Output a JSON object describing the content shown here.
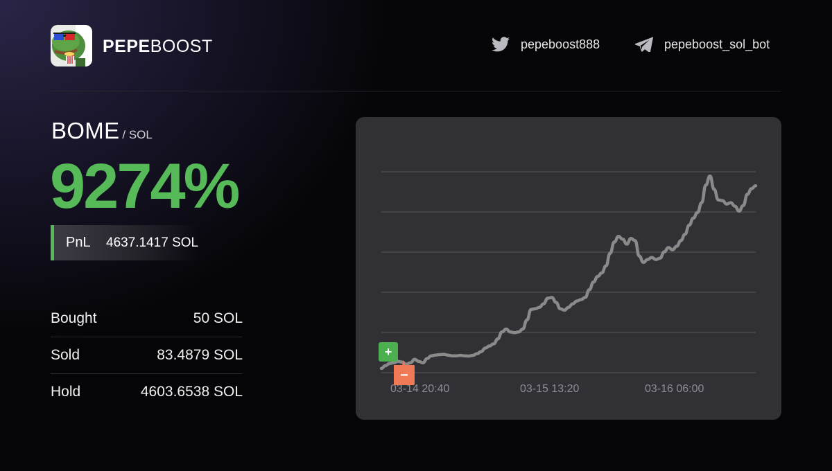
{
  "brand": {
    "name_bold": "PEPE",
    "name_light": "BOOST"
  },
  "social": {
    "twitter": {
      "handle": "pepeboost888",
      "icon": "twitter-icon"
    },
    "telegram": {
      "handle": "pepeboost_sol_bot",
      "icon": "telegram-icon"
    }
  },
  "token": {
    "symbol": "BOME",
    "quote": "/ SOL"
  },
  "pnl_percent": "9274%",
  "pnl": {
    "label": "PnL",
    "value": "4637.1417 SOL"
  },
  "stats": [
    {
      "label": "Bought",
      "value": "50 SOL"
    },
    {
      "label": "Sold",
      "value": "83.4879 SOL"
    },
    {
      "label": "Hold",
      "value": "4603.6538 SOL"
    }
  ],
  "colors": {
    "accent_green": "#56ba58",
    "sell_marker": "#f07a55",
    "buy_marker": "#4caf50",
    "line": "#8a8a8a",
    "card_bg": "#313135"
  },
  "chart_data": {
    "type": "line",
    "title": "",
    "xlabel": "",
    "ylabel": "",
    "x_ticks": [
      "03-14 20:40",
      "03-15 13:20",
      "03-16 06:00"
    ],
    "grid": true,
    "markers": [
      {
        "type": "buy",
        "symbol": "+"
      },
      {
        "type": "sell",
        "symbol": "−"
      }
    ],
    "series": [
      {
        "values": [
          0.0,
          2.0,
          3.5,
          4.0,
          5.0,
          4.5,
          3.0,
          4.0,
          6.5,
          5.0,
          4.0,
          7.0,
          9.0,
          9.5,
          9.8,
          10.0,
          9.5,
          9.0,
          9.0,
          9.3,
          9.0,
          8.8,
          9.3,
          10.5,
          12.0,
          14.5,
          16.0,
          17.5,
          21.0,
          26.0,
          28.0,
          26.0,
          25.5,
          26.0,
          28.0,
          34.5,
          42.0,
          42.5,
          43.5,
          46.0,
          50.0,
          50.5,
          47.0,
          42.5,
          41.5,
          43.5,
          46.0,
          48.0,
          49.0,
          50.5,
          56.0,
          61.5,
          65.5,
          68.0,
          73.0,
          82.0,
          90.0,
          94.0,
          92.0,
          88.5,
          92.5,
          91.0,
          80.0,
          75.5,
          77.5,
          79.0,
          77.5,
          78.5,
          83.0,
          86.0,
          84.5,
          87.0,
          91.0,
          95.5,
          102.0,
          107.0,
          111.0,
          118.0,
          130.5,
          137.0,
          127.5,
          120.0,
          119.5,
          117.0,
          118.0,
          115.5,
          112.0,
          116.0,
          124.0,
          128.0,
          130.0
        ]
      }
    ]
  }
}
